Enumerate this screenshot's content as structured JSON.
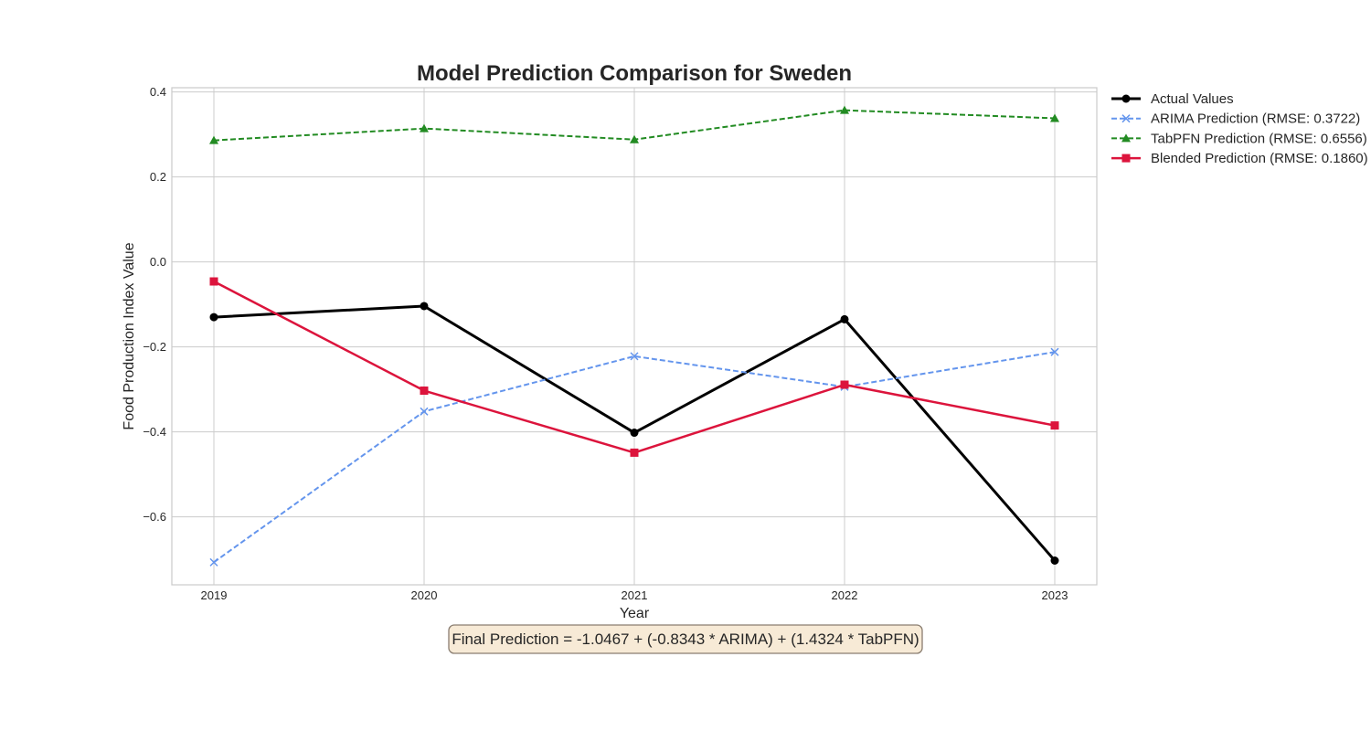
{
  "chart_data": {
    "type": "line",
    "title": "Model Prediction Comparison for Sweden",
    "xlabel": "Year",
    "ylabel": "Food Production Index Value",
    "x": [
      2019,
      2020,
      2021,
      2022,
      2023
    ],
    "x_tick_labels": [
      "2019",
      "2020",
      "2021",
      "2022",
      "2023"
    ],
    "xlim": [
      2018.8,
      2023.2
    ],
    "ylim": [
      -0.76,
      0.41
    ],
    "y_ticks": [
      0.4,
      0.2,
      0.0,
      -0.2,
      -0.4,
      -0.6
    ],
    "y_tick_labels": [
      "0.4",
      "0.2",
      "0.0",
      "−0.2",
      "−0.4",
      "−0.6"
    ],
    "grid": true,
    "legend_position": "outside-top-right",
    "series": [
      {
        "name": "Actual Values",
        "values": [
          -0.13,
          -0.104,
          -0.402,
          -0.135,
          -0.703
        ],
        "color": "#000000",
        "line_style": "solid",
        "line_width": 3,
        "marker": "circle"
      },
      {
        "name": "ARIMA Prediction (RMSE: 0.3722)",
        "values": [
          -0.707,
          -0.352,
          -0.222,
          -0.294,
          -0.212
        ],
        "color": "#6495ed",
        "line_style": "dashed",
        "line_width": 2,
        "marker": "x"
      },
      {
        "name": "TabPFN Prediction (RMSE: 0.6556)",
        "values": [
          0.286,
          0.314,
          0.288,
          0.357,
          0.338
        ],
        "color": "#228b22",
        "line_style": "dashed",
        "line_width": 2,
        "marker": "triangle"
      },
      {
        "name": "Blended Prediction (RMSE: 0.1860)",
        "values": [
          -0.046,
          -0.303,
          -0.449,
          -0.289,
          -0.385
        ],
        "color": "#dc143c",
        "line_style": "solid",
        "line_width": 2.5,
        "marker": "square"
      }
    ],
    "annotation": {
      "text": "Final Prediction = -1.0467 + (-0.8343 * ARIMA) + (1.4324 * TabPFN)",
      "box_fill": "#f7ead6",
      "box_stroke": "#8a7d70"
    }
  }
}
